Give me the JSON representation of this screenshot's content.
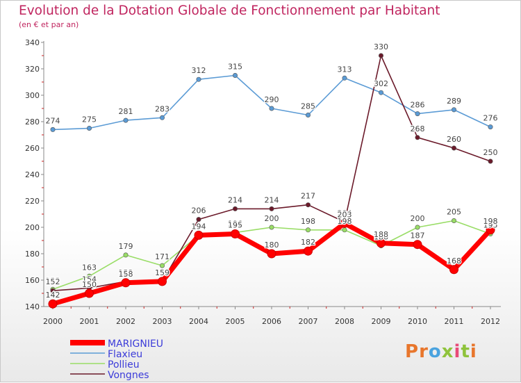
{
  "title": "Evolution de la Dotation Globale de Fonctionnement par Habitant",
  "subtitle": "(en € et par an)",
  "logo": {
    "letters": [
      "P",
      "r",
      "o",
      "x",
      "i",
      "t",
      "i"
    ],
    "colors": [
      "#e8762c",
      "#e8762c",
      "#4aa3df",
      "#8fc33c",
      "#e84a78",
      "#8fc33c",
      "#e8762c"
    ]
  },
  "chart_data": {
    "type": "line",
    "title": "Evolution de la Dotation Globale de Fonctionnement par Habitant",
    "subtitle": "(en € et par an)",
    "x": [
      "2000",
      "2001",
      "2002",
      "2003",
      "2004",
      "2005",
      "2006",
      "2007",
      "2008",
      "2009",
      "2010",
      "2011",
      "2012"
    ],
    "ylim": [
      140,
      340
    ],
    "yticks": [
      140,
      160,
      180,
      200,
      220,
      240,
      260,
      280,
      300,
      320,
      340
    ],
    "grid": false,
    "legend_position": "bottom-left",
    "series": [
      {
        "name": "Flaxieu",
        "color": "#5b9bd5",
        "values": [
          274,
          275,
          281,
          283,
          312,
          315,
          290,
          285,
          313,
          302,
          286,
          289,
          276
        ]
      },
      {
        "name": "Pollieu",
        "color": "#99dd66",
        "values": [
          153,
          163,
          179,
          171,
          194,
          196,
          200,
          198,
          198,
          186,
          200,
          205,
          195
        ]
      },
      {
        "name": "Vongnes",
        "color": "#6b1a2a",
        "values": [
          152,
          154,
          159,
          159,
          206,
          214,
          214,
          217,
          204,
          330,
          268,
          260,
          250
        ]
      },
      {
        "name": "MARIGNIEU",
        "color": "#ff0000",
        "values": [
          142,
          150,
          158,
          159,
          194,
          195,
          180,
          182,
          203,
          188,
          187,
          168,
          198
        ]
      }
    ]
  }
}
